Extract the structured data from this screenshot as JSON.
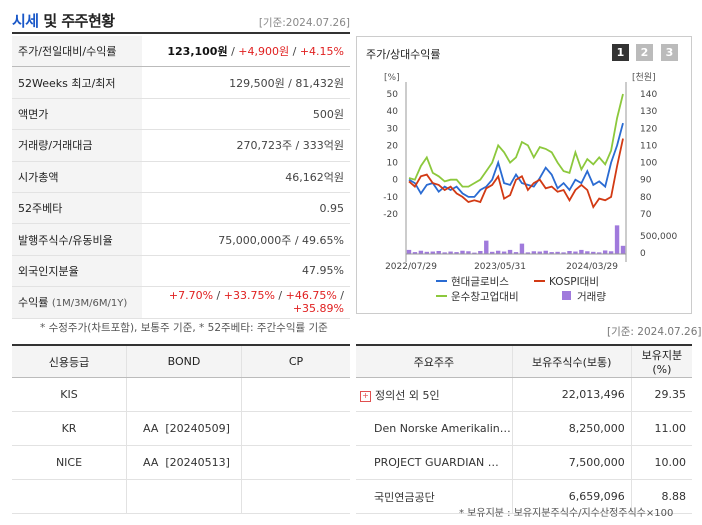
{
  "header": {
    "title_part1": "시세",
    "title_part2": " 및 주주현황",
    "base_date": "[기준:2024.07.26]"
  },
  "price_table": {
    "rows": [
      {
        "label": "주가/전일대비/수익률"
      },
      {
        "label": "52Weeks 최고/최저",
        "value": "129,500원 / 81,432원"
      },
      {
        "label": "액면가",
        "value": "500원"
      },
      {
        "label": "거래량/거래대금",
        "value": "270,723주 / 333억원"
      },
      {
        "label": "시가총액",
        "value": "46,162억원"
      },
      {
        "label": "52주베타",
        "value": "0.95"
      },
      {
        "label": "발행주식수/유동비율",
        "value": "75,000,000주 / 49.65%"
      },
      {
        "label": "외국인지분율",
        "value": "47.95%"
      },
      {
        "label": "수익률",
        "label_sub": "(1M/3M/6M/1Y)"
      }
    ],
    "price": "123,100원",
    "change": "+4,900원",
    "change_pct": "+4.15%",
    "sep": " / ",
    "returns": [
      "+7.70%",
      "+33.75%",
      "+46.75%",
      "+35.89%"
    ]
  },
  "chart_panel": {
    "title": "주가/상대수익률",
    "pages": [
      "1",
      "2",
      "3"
    ],
    "active_page": 0
  },
  "chart_data": {
    "type": "line",
    "left_axis_unit": "[%]",
    "right_axis_unit": "[천원]",
    "left_ticks": [
      50,
      40,
      30,
      20,
      10,
      0,
      -10,
      -20
    ],
    "right_ticks": [
      140,
      130,
      120,
      110,
      100,
      90,
      80,
      70
    ],
    "volume_ticks": [
      "500,000",
      "0"
    ],
    "x_labels": [
      "2022/07/29",
      "2023/05/31",
      "2024/03/29"
    ],
    "ylim_left": [
      -20,
      50
    ],
    "ylim_right": [
      70,
      140
    ],
    "colors": {
      "hyundai": "#2a6bd2",
      "kospi": "#d23a14",
      "hoesu": "#8cc83c",
      "volume": "#a07adc"
    },
    "series": [
      {
        "name": "현대글로비스",
        "values": [
          0,
          -2,
          -8,
          -3,
          -2,
          -7,
          -4,
          -6,
          -4,
          -8,
          -10,
          -10,
          -6,
          -4,
          0,
          10,
          -2,
          -3,
          3,
          -2,
          -3,
          -4,
          1,
          7,
          3,
          -5,
          -2,
          -6,
          0,
          -2,
          5,
          -3,
          -1,
          -4,
          10,
          20,
          33
        ]
      },
      {
        "name": "KOSPI대비",
        "values": [
          -1,
          -4,
          2,
          3,
          -2,
          -3,
          -6,
          -4,
          -8,
          -10,
          -13,
          -12,
          -13,
          -5,
          -3,
          2,
          -11,
          -9,
          0,
          2,
          -6,
          -2,
          0,
          -5,
          -4,
          -7,
          -6,
          -12,
          -6,
          -3,
          -6,
          -16,
          -11,
          -12,
          -10,
          8,
          24
        ]
      },
      {
        "name": "운수창고업대비",
        "values": [
          1,
          0,
          8,
          13,
          4,
          2,
          -1,
          0,
          0,
          -4,
          -4,
          -2,
          0,
          5,
          10,
          20,
          16,
          10,
          13,
          22,
          20,
          13,
          19,
          18,
          16,
          10,
          5,
          4,
          16,
          6,
          12,
          9,
          13,
          9,
          17,
          36,
          50
        ]
      },
      {
        "name": "거래량",
        "values": [
          150000,
          70000,
          120000,
          80000,
          90000,
          110000,
          60000,
          90000,
          70000,
          120000,
          100000,
          50000,
          110000,
          490000,
          80000,
          120000,
          90000,
          150000,
          70000,
          380000,
          60000,
          100000,
          90000,
          120000,
          70000,
          80000,
          60000,
          110000,
          90000,
          150000,
          100000,
          80000,
          60000,
          130000,
          100000,
          1050000,
          300000
        ]
      }
    ]
  },
  "footnote": "* 수정주가(차트포함), 보통주 기준, * 52주베타: 주간수익률 기준",
  "base_date_bottom": "[기준: 2024.07.26]",
  "credit_table": {
    "headers": [
      "신용등급",
      "BOND",
      "CP"
    ],
    "rows": [
      [
        "KIS",
        "",
        ""
      ],
      [
        "KR",
        "AA  [20240509]",
        ""
      ],
      [
        "NICE",
        "AA  [20240513]",
        ""
      ],
      [
        "",
        "",
        ""
      ]
    ]
  },
  "holders_table": {
    "headers": [
      "주요주주",
      "보유주식수(보통)",
      "보유지분(%)"
    ],
    "rows": [
      [
        "정의선 외 5인",
        "22,013,496",
        "29.35"
      ],
      [
        "Den Norske Amerikalin…",
        "8,250,000",
        "11.00"
      ],
      [
        "PROJECT GUARDIAN …",
        "7,500,000",
        "10.00"
      ],
      [
        "국민연금공단",
        "6,659,096",
        "8.88"
      ]
    ],
    "expand_icon": "plus-icon",
    "note": "* 보유지분 : 보유지분주식수/지수산정주식수×100"
  }
}
